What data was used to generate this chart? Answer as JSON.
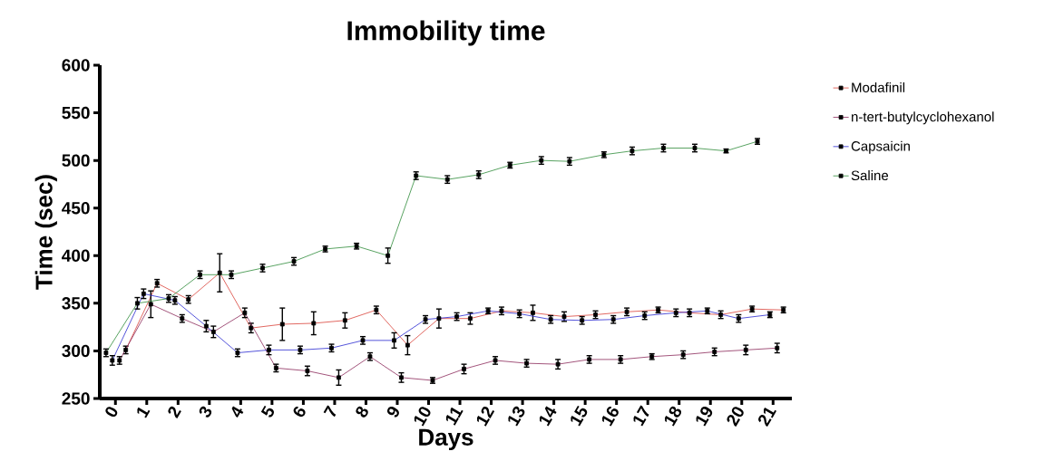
{
  "chart_data": {
    "type": "line",
    "title": "Immobility time",
    "xlabel": "Days",
    "ylabel": "Time (sec)",
    "xlim": [
      -0.5,
      21.6
    ],
    "xticks": [
      0,
      1,
      2,
      3,
      4,
      5,
      6,
      7,
      8,
      9,
      10,
      11,
      12,
      13,
      14,
      15,
      16,
      17,
      18,
      19,
      20,
      21
    ],
    "ylim": [
      250,
      600
    ],
    "yticks": [
      250,
      300,
      350,
      400,
      450,
      500,
      550,
      600
    ],
    "legend": "right",
    "marker": "square",
    "grid": false,
    "series": [
      {
        "name": "Modafinil",
        "color": "#d9433a",
        "x": [
          0.33,
          1.33,
          2.33,
          3.33,
          4.33,
          5.33,
          6.33,
          7.33,
          8.33,
          9.33,
          10.33,
          11.33,
          12.33,
          13.33,
          14.33,
          15.33,
          16.33,
          17.33,
          18.33,
          19.33,
          20.33,
          21.33
        ],
        "values": [
          301,
          371,
          354,
          382,
          324,
          328,
          329,
          332,
          343,
          306,
          334,
          334,
          342,
          340,
          336,
          338,
          341,
          343,
          340,
          338,
          344,
          343
        ],
        "errors": [
          4,
          4,
          4,
          20,
          5,
          17,
          12,
          8,
          4,
          10,
          10,
          6,
          4,
          8,
          5,
          4,
          4,
          3,
          4,
          4,
          3,
          3
        ]
      },
      {
        "name": "n-tert-butylcyclohexanol",
        "color": "#8b2a5a",
        "x": [
          0.13,
          1.13,
          2.13,
          3.13,
          4.13,
          5.13,
          6.13,
          7.13,
          8.13,
          9.13,
          10.13,
          11.13,
          12.13,
          13.13,
          14.13,
          15.13,
          16.13,
          17.13,
          18.13,
          19.13,
          20.13,
          21.13
        ],
        "values": [
          290,
          349,
          334,
          320,
          340,
          282,
          279,
          272,
          294,
          272,
          269,
          281,
          290,
          287,
          286,
          291,
          291,
          294,
          296,
          299,
          301,
          303
        ],
        "errors": [
          4,
          14,
          4,
          6,
          5,
          4,
          5,
          8,
          4,
          5,
          3,
          5,
          4,
          4,
          5,
          4,
          4,
          3,
          4,
          4,
          5,
          5
        ]
      },
      {
        "name": "Capsaicin",
        "color": "#2a2ad0",
        "x": [
          -0.1,
          0.9,
          1.9,
          2.9,
          3.9,
          4.9,
          5.9,
          6.9,
          7.9,
          8.9,
          9.9,
          10.9,
          11.9,
          12.9,
          13.9,
          14.9,
          15.9,
          16.9,
          17.9,
          18.9,
          19.9,
          20.9
        ],
        "values": [
          290,
          360,
          353,
          326,
          298,
          301,
          301,
          303,
          311,
          311,
          333,
          336,
          342,
          339,
          333,
          332,
          333,
          337,
          340,
          342,
          334,
          338
        ],
        "errors": [
          5,
          5,
          4,
          6,
          4,
          5,
          4,
          4,
          4,
          8,
          4,
          4,
          3,
          4,
          4,
          4,
          4,
          4,
          4,
          3,
          4,
          3
        ]
      },
      {
        "name": "Saline",
        "color": "#2e8b3a",
        "x": [
          -0.3,
          0.7,
          1.7,
          2.7,
          3.7,
          4.7,
          5.7,
          6.7,
          7.7,
          8.7,
          9.6,
          10.6,
          11.6,
          12.6,
          13.6,
          14.5,
          15.6,
          16.5,
          17.5,
          18.5,
          19.5,
          20.5
        ],
        "values": [
          298,
          350,
          355,
          380,
          380,
          387,
          394,
          407,
          410,
          400,
          484,
          480,
          485,
          495,
          500,
          499,
          506,
          510,
          513,
          513,
          510,
          520
        ],
        "errors": [
          4,
          6,
          4,
          4,
          4,
          4,
          4,
          3,
          3,
          8,
          4,
          4,
          4,
          3,
          4,
          4,
          3,
          4,
          4,
          4,
          2,
          3
        ]
      }
    ]
  }
}
